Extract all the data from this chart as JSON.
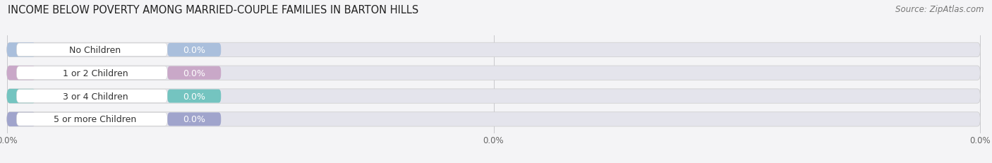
{
  "title": "INCOME BELOW POVERTY AMONG MARRIED-COUPLE FAMILIES IN BARTON HILLS",
  "source": "Source: ZipAtlas.com",
  "categories": [
    "No Children",
    "1 or 2 Children",
    "3 or 4 Children",
    "5 or more Children"
  ],
  "values": [
    0.0,
    0.0,
    0.0,
    0.0
  ],
  "bar_colors": [
    "#aabfdc",
    "#c9a8c8",
    "#74c4c0",
    "#a0a4cc"
  ],
  "background_color": "#f4f4f6",
  "bar_bg_color": "#e4e4ec",
  "title_fontsize": 10.5,
  "source_fontsize": 8.5,
  "bar_label_fontsize": 9,
  "category_fontsize": 9,
  "figwidth": 14.06,
  "figheight": 2.32,
  "dpi": 100
}
